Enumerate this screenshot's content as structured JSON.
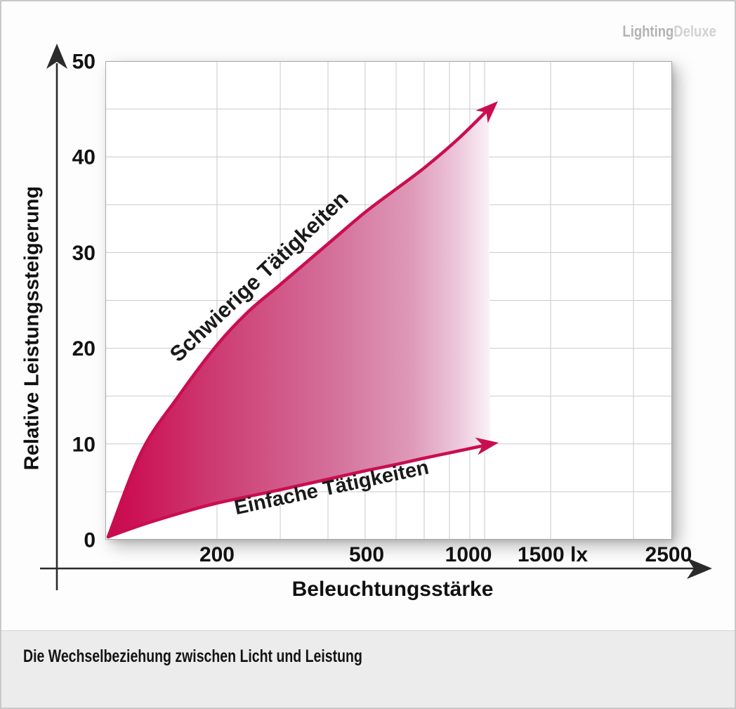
{
  "logo": {
    "part1": "Lighting",
    "part2": "Deluxe"
  },
  "caption": "Die Wechselbeziehung zwischen Licht und Leistung",
  "chart_data": {
    "type": "area",
    "title": "Die Wechselbeziehung zwischen Licht und Leistung",
    "xlabel": "Beleuchtungsstärke",
    "ylabel": "Relative Leistungssteigerung",
    "x_unit": "lx",
    "ylim": [
      0,
      50
    ],
    "xlim_lx": [
      0,
      2500
    ],
    "x_scale": "pseudo-logarithmic",
    "grid": true,
    "y_grid_step": 5,
    "y_ticks": [
      {
        "value": 0,
        "label": "0"
      },
      {
        "value": 10,
        "label": "10"
      },
      {
        "value": 20,
        "label": "20"
      },
      {
        "value": 30,
        "label": "30"
      },
      {
        "value": 40,
        "label": "40"
      },
      {
        "value": 50,
        "label": "50"
      }
    ],
    "x_tick_labels": [
      {
        "value": 200,
        "label": "200"
      },
      {
        "value": 500,
        "label": "500"
      },
      {
        "value": 1000,
        "label": "1000"
      },
      {
        "value": 1500,
        "label": "1500 lx"
      },
      {
        "value": 2500,
        "label": "2500"
      }
    ],
    "x_gridline_values": [
      200,
      300,
      400,
      500,
      600,
      700,
      800,
      900,
      1000,
      1500,
      2000
    ],
    "series": [
      {
        "name": "Schwierige Tätigkeiten",
        "x_lx": [
          0,
          200,
          300,
          400,
          500,
          600,
          700,
          800,
          900,
          1000,
          1100
        ],
        "y": [
          0,
          20.3,
          26.6,
          30.9,
          34.2,
          37.0,
          39.4,
          41.3,
          42.8,
          44.0,
          45.7
        ]
      },
      {
        "name": "Einfache Tätigkeiten",
        "x_lx": [
          0,
          200,
          300,
          400,
          500,
          600,
          700,
          800,
          900,
          1000,
          1080
        ],
        "y": [
          0,
          3.7,
          5.1,
          6.2,
          7.2,
          8.0,
          8.7,
          9.2,
          9.6,
          9.9,
          10.1
        ]
      }
    ],
    "colors": {
      "curve": "#c90e50",
      "axis": "#2b2b2b",
      "grid": "#c9c9c9",
      "text": "#111111",
      "fill_gradient": [
        {
          "at": 0,
          "c": "#c30a4c"
        },
        {
          "at": 0.05,
          "c": "#cc1254"
        },
        {
          "at": 0.2,
          "c": "#cd3d73"
        },
        {
          "at": 0.4,
          "c": "#d4709a"
        },
        {
          "at": 0.54,
          "c": "#de9ab8"
        },
        {
          "at": 0.62,
          "c": "#ecc6da"
        },
        {
          "at": 0.68,
          "c": "#fbf3f7"
        },
        {
          "at": 0.72,
          "c": "#ffffff"
        },
        {
          "at": 1,
          "c": "#ffffff"
        }
      ]
    }
  }
}
